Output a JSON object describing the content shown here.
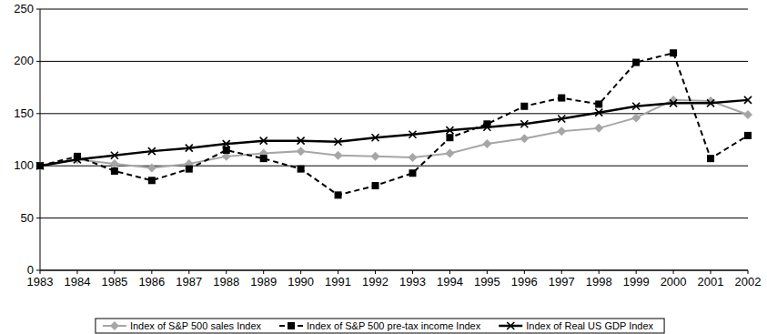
{
  "chart_data": {
    "type": "line",
    "categories": [
      "1983",
      "1984",
      "1985",
      "1986",
      "1987",
      "1988",
      "1989",
      "1990",
      "1991",
      "1992",
      "1993",
      "1994",
      "1995",
      "1996",
      "1997",
      "1998",
      "1999",
      "2000",
      "2001",
      "2002"
    ],
    "series": [
      {
        "name": "Index of S&P 500 sales Index",
        "color": "#a6a6a6",
        "marker": "diamond",
        "line_style": "solid",
        "values": [
          100,
          106,
          102,
          98,
          102,
          109,
          112,
          114,
          110,
          109,
          108,
          112,
          121,
          126,
          133,
          136,
          146,
          163,
          162,
          149
        ]
      },
      {
        "name": "Index of S&P 500 pre-tax income Index",
        "color": "#000000",
        "marker": "square",
        "line_style": "dashed",
        "values": [
          100,
          109,
          95,
          86,
          97,
          115,
          107,
          97,
          72,
          81,
          93,
          127,
          140,
          157,
          165,
          159,
          199,
          208,
          107,
          129
        ]
      },
      {
        "name": "Index of Real US GDP Index",
        "color": "#000000",
        "marker": "x",
        "line_style": "solid",
        "values": [
          100,
          106,
          110,
          114,
          117,
          121,
          124,
          124,
          123,
          127,
          130,
          134,
          137,
          140,
          145,
          151,
          157,
          160,
          160,
          163
        ]
      }
    ],
    "ylim": [
      0,
      250
    ],
    "yticks": [
      0,
      50,
      100,
      150,
      200,
      250
    ],
    "grid": true,
    "legend": "bottom"
  }
}
